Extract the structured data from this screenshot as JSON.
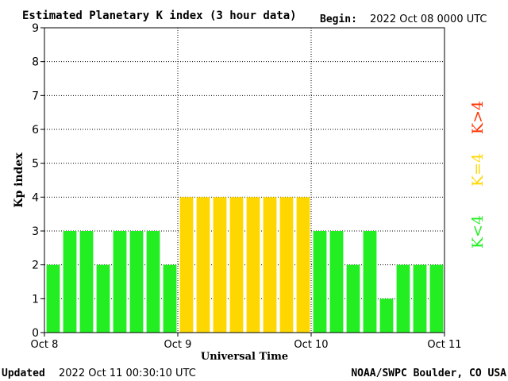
{
  "header": {
    "title": "Estimated Planetary K index (3 hour data)",
    "begin_label": "Begin:",
    "begin_value": "2022 Oct 08 0000 UTC"
  },
  "footer": {
    "updated_label": "Updated",
    "updated_value": "2022 Oct 11 00:30:10 UTC",
    "credit": "NOAA/SWPC Boulder, CO USA"
  },
  "legend": {
    "low": {
      "label": "K<4",
      "color": "#22ee22"
    },
    "mid": {
      "label": "K=4",
      "color": "#ffd700"
    },
    "high": {
      "label": "K>4",
      "color": "#ff3300"
    }
  },
  "chart_data": {
    "type": "bar",
    "title": "Estimated Planetary K index (3 hour data)",
    "xlabel": "Universal Time",
    "ylabel": "Kp index",
    "ylim": [
      0,
      9
    ],
    "yticks": [
      0,
      1,
      2,
      3,
      4,
      5,
      6,
      7,
      8,
      9
    ],
    "xtick_labels": [
      "Oct 8",
      "Oct 9",
      "Oct 10",
      "Oct 11"
    ],
    "grid": "dotted at y ticks and day boundaries",
    "values": [
      2,
      3,
      3,
      2,
      3,
      3,
      3,
      2,
      4,
      4,
      4,
      4,
      4,
      4,
      4,
      4,
      3,
      3,
      2,
      3,
      1,
      2,
      2,
      2
    ],
    "colors": {
      "below_4": "#22ee22",
      "equal_4": "#ffd700",
      "above_4": "#ff3300"
    }
  }
}
